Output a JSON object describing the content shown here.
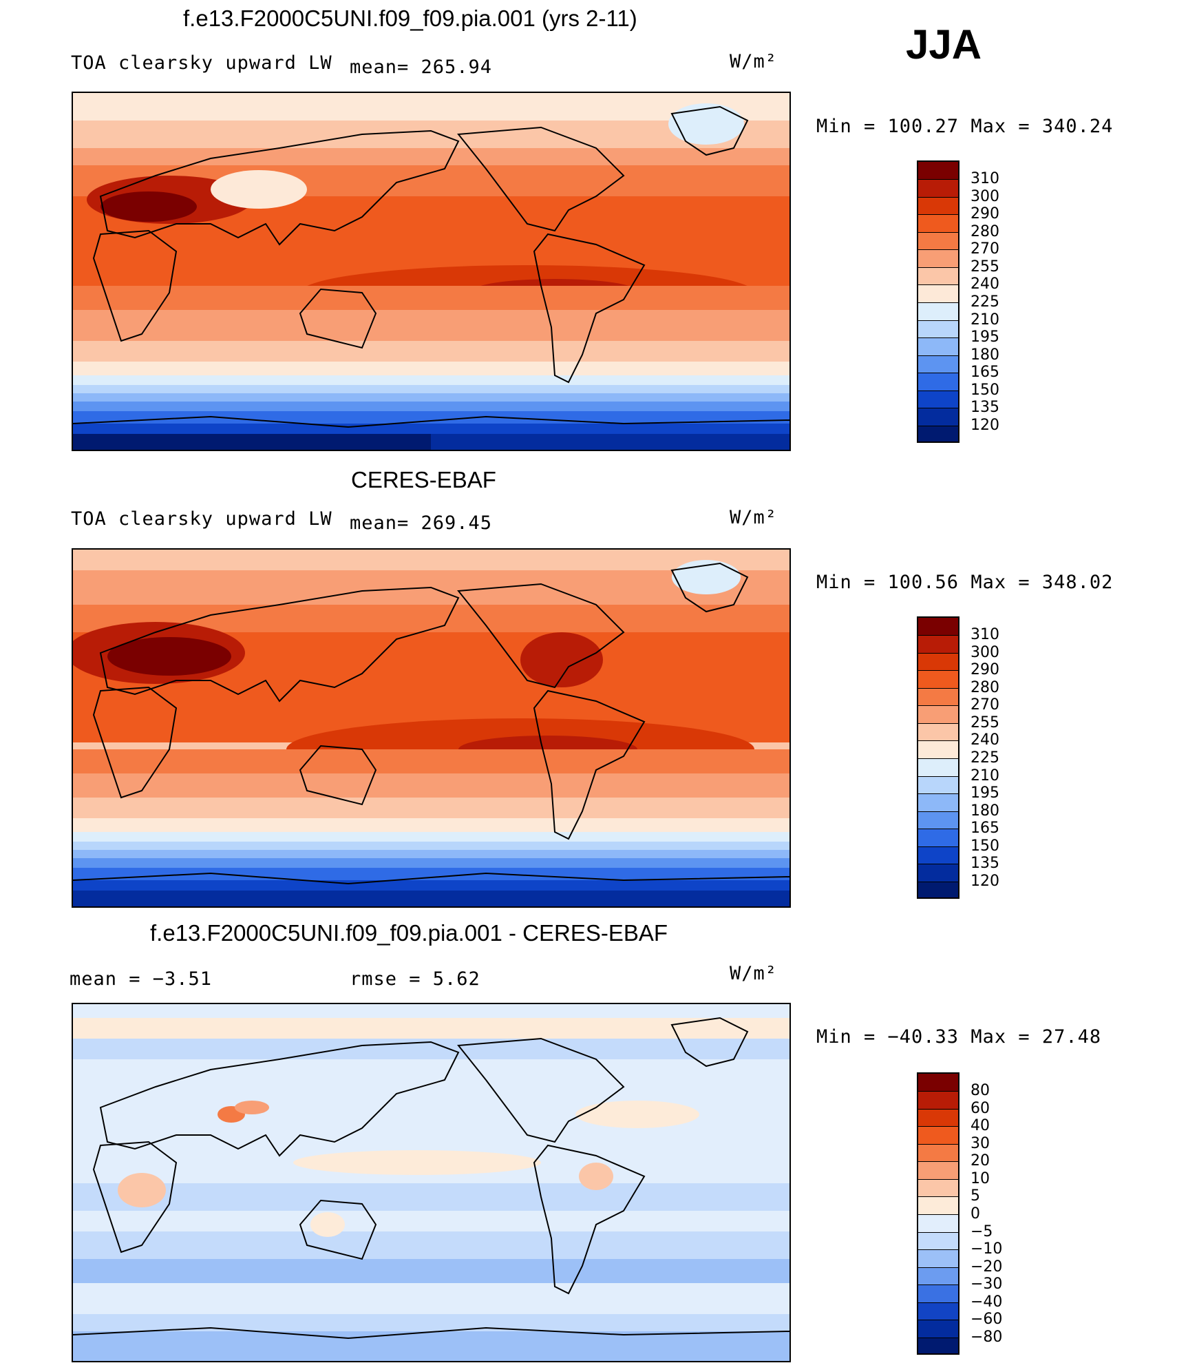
{
  "season": "JJA",
  "panels": [
    {
      "title": "f.e13.F2000C5UNI.f09_f09.pia.001 (yrs 2-11)",
      "left_label": "TOA clearsky upward LW",
      "mid_label": "mean= 265.94",
      "units": "W/m²",
      "minmax": "Min = 100.27 Max = 340.24",
      "colorbar_labels": [
        "310",
        "300",
        "290",
        "280",
        "270",
        "255",
        "240",
        "225",
        "210",
        "195",
        "180",
        "165",
        "150",
        "135",
        "120"
      ]
    },
    {
      "title": "CERES-EBAF",
      "left_label": "TOA clearsky upward LW",
      "mid_label": "mean= 269.45",
      "units": "W/m²",
      "minmax": "Min = 100.56 Max = 348.02",
      "colorbar_labels": [
        "310",
        "300",
        "290",
        "280",
        "270",
        "255",
        "240",
        "225",
        "210",
        "195",
        "180",
        "165",
        "150",
        "135",
        "120"
      ]
    },
    {
      "title": "f.e13.F2000C5UNI.f09_f09.pia.001 - CERES-EBAF",
      "left_label": "mean =   −3.51",
      "mid_label": "rmse =    5.62",
      "units": "W/m²",
      "minmax": "Min = −40.33 Max =  27.48",
      "colorbar_labels": [
        "80",
        "60",
        "40",
        "30",
        "20",
        "10",
        "5",
        "0",
        "−5",
        "−10",
        "−20",
        "−30",
        "−40",
        "−60",
        "−80"
      ]
    }
  ],
  "colors": {
    "abs_scale": [
      "#7a0000",
      "#b81c06",
      "#d93806",
      "#ef5a1e",
      "#f47a44",
      "#f89e75",
      "#fbc6a8",
      "#fde9d8",
      "#ddeefb",
      "#b8d6fb",
      "#8db8f8",
      "#5d94f1",
      "#2f6be6",
      "#0e44c8",
      "#032c9e",
      "#001a70"
    ],
    "diff_scale": [
      "#7a0000",
      "#b81c06",
      "#d93806",
      "#ef5a1e",
      "#f47a44",
      "#f89e75",
      "#fbc6a8",
      "#fdebd9",
      "#e2eefc",
      "#c4dbfb",
      "#9cc0f7",
      "#6c9cf0",
      "#3a71e3",
      "#1244c4",
      "#032c9e",
      "#001a70"
    ]
  }
}
